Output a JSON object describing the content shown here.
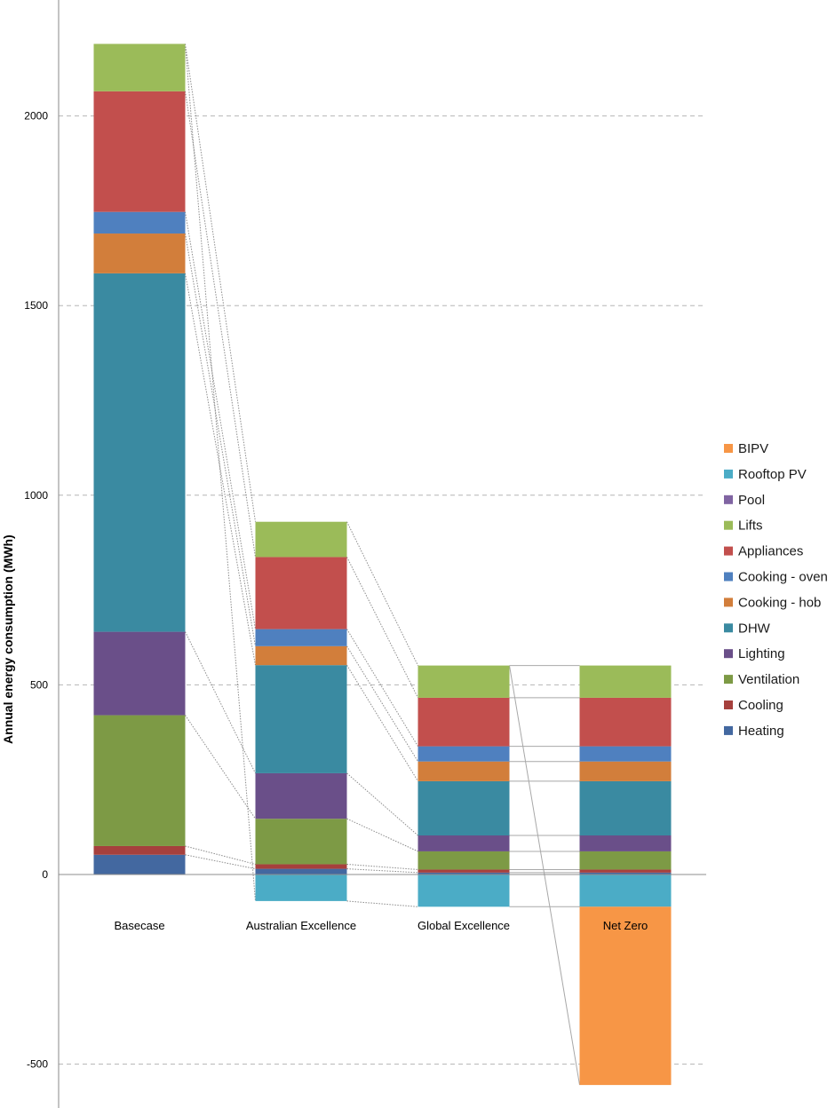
{
  "chart_data": {
    "type": "bar",
    "stacked": true,
    "title": "",
    "xlabel": "",
    "ylabel": "Annual energy consumption (MWh)",
    "ylim": [
      -590,
      2300
    ],
    "yticks": [
      -500,
      0,
      500,
      1000,
      1500,
      2000
    ],
    "grid": true,
    "legend_position": "right",
    "categories": [
      "Basecase",
      "Australian Excellence",
      "Global Excellence",
      "Net Zero"
    ],
    "series": [
      {
        "name": "Heating",
        "color": "#4368A0",
        "values": [
          52,
          15,
          5,
          5
        ]
      },
      {
        "name": "Cooling",
        "color": "#A6403D",
        "values": [
          23,
          12,
          8,
          8
        ]
      },
      {
        "name": "Ventilation",
        "color": "#7D9A45",
        "values": [
          345,
          120,
          48,
          48
        ]
      },
      {
        "name": "Lighting",
        "color": "#6A4F89",
        "values": [
          220,
          120,
          42,
          42
        ]
      },
      {
        "name": "DHW",
        "color": "#3A8AA1",
        "values": [
          945,
          285,
          143,
          143
        ]
      },
      {
        "name": "Cooking - hob",
        "color": "#D27E3B",
        "values": [
          105,
          50,
          52,
          52
        ]
      },
      {
        "name": "Cooking - oven",
        "color": "#4F80BF",
        "values": [
          57,
          45,
          40,
          40
        ]
      },
      {
        "name": "Appliances",
        "color": "#C24F4D",
        "values": [
          318,
          190,
          128,
          128
        ]
      },
      {
        "name": "Lifts",
        "color": "#9BBB59",
        "values": [
          125,
          93,
          85,
          85
        ]
      },
      {
        "name": "Pool",
        "color": "#8064A2",
        "values": [
          0,
          0,
          0,
          0
        ]
      },
      {
        "name": "Rooftop PV",
        "color": "#4BACC6",
        "values": [
          0,
          -70,
          -85,
          -85
        ]
      },
      {
        "name": "BIPV",
        "color": "#F79646",
        "values": [
          0,
          0,
          0,
          -470
        ]
      }
    ],
    "category_label_highlight": "Net Zero"
  }
}
